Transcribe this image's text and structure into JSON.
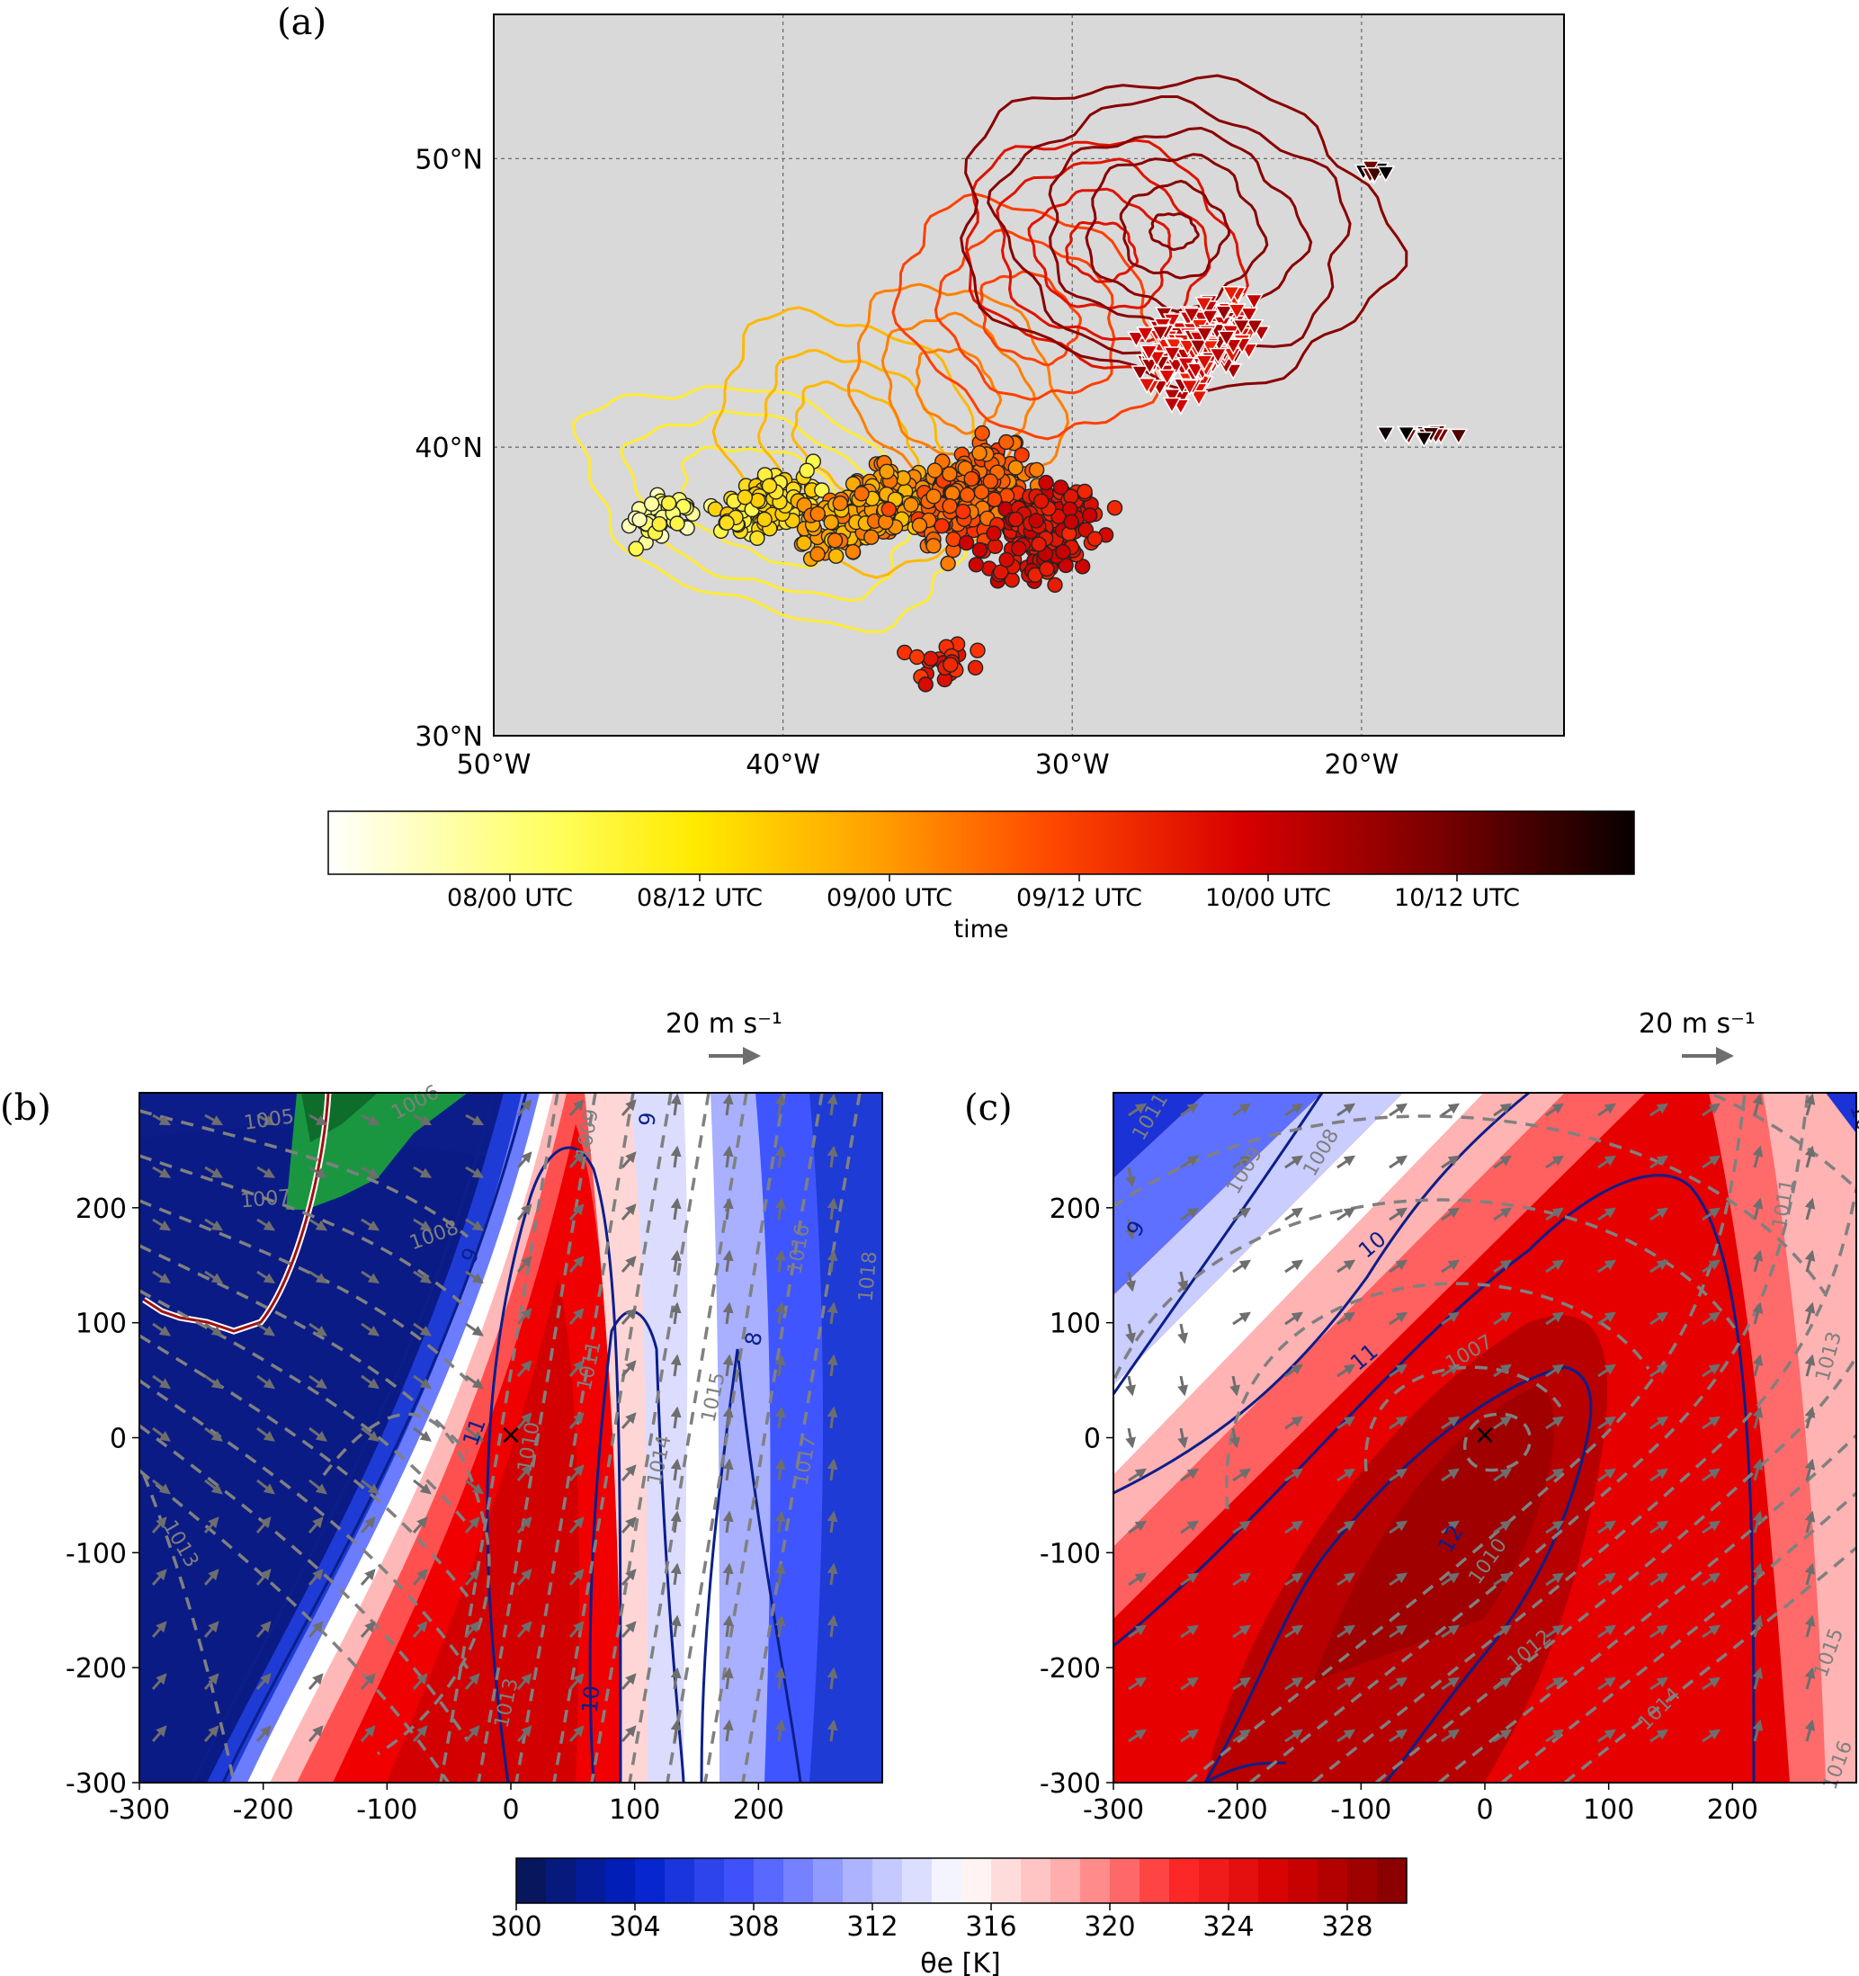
{
  "colors": {
    "map_background": "#d9d9d9",
    "trajectory_cmap": [
      "#ffffff",
      "#ffff59",
      "#ffcc00",
      "#ff8c00",
      "#ff3300",
      "#cc0000",
      "#800000",
      "#000000"
    ],
    "theta_cmap": [
      "#08165e",
      "#0021c9",
      "#4455ff",
      "#aab0ff",
      "#ffffff",
      "#ffaaaa",
      "#ff2a2a",
      "#d40000",
      "#8b0000"
    ],
    "pressure_contour": "#808080",
    "wind_contour": "#0b1f8a"
  },
  "chart_data": [
    {
      "panel": "(a)",
      "type": "scatter",
      "map": true,
      "xlim": [
        -50,
        -13
      ],
      "ylim": [
        30,
        55
      ],
      "x_ticks": [
        "50°W",
        "40°W",
        "30°W",
        "20°W"
      ],
      "y_ticks": [
        "30°N",
        "40°N",
        "50°N"
      ],
      "grid": true,
      "series": [
        {
          "marker": "circle"
        },
        {
          "marker": "triangle-down"
        }
      ],
      "colorbar": {
        "label": "time",
        "ticks": [
          "08/00 UTC",
          "08/12 UTC",
          "09/00 UTC",
          "09/12 UTC",
          "10/00 UTC",
          "10/12 UTC"
        ]
      }
    },
    {
      "panel": "(b)",
      "type": "heatmap",
      "xlim": [
        -300,
        300
      ],
      "ylim": [
        -300,
        300
      ],
      "x_ticks": [
        "-300",
        "-200",
        "-100",
        "0",
        "100",
        "200"
      ],
      "y_ticks": [
        "-300",
        "-200",
        "-100",
        "0",
        "100",
        "200"
      ],
      "vector_key": "20 m s⁻¹",
      "pressure_labels": [
        "1005",
        "1006",
        "1007",
        "1008",
        "1009",
        "1010",
        "1011",
        "1013",
        "1013",
        "1014",
        "1015",
        "1016",
        "1017",
        "1018"
      ],
      "wind_labels": [
        "9",
        "9",
        "11",
        "10",
        "8"
      ]
    },
    {
      "panel": "(c)",
      "type": "heatmap",
      "xlim": [
        -300,
        300
      ],
      "ylim": [
        -300,
        300
      ],
      "x_ticks": [
        "-300",
        "-200",
        "-100",
        "0",
        "100",
        "200"
      ],
      "y_ticks": [
        "-300",
        "-200",
        "-100",
        "0",
        "100",
        "200"
      ],
      "vector_key": "20 m s⁻¹",
      "pressure_labels": [
        "1011",
        "1009",
        "1008",
        "1007",
        "1010",
        "1012",
        "1013",
        "1014",
        "1015",
        "1016",
        "1011"
      ],
      "wind_labels": [
        "10",
        "9",
        "10",
        "11",
        "12"
      ],
      "colorbar": {
        "label": "θe [K]",
        "range": [
          300,
          330
        ],
        "ticks": [
          "300",
          "304",
          "308",
          "312",
          "316",
          "320",
          "324",
          "328"
        ]
      }
    }
  ]
}
